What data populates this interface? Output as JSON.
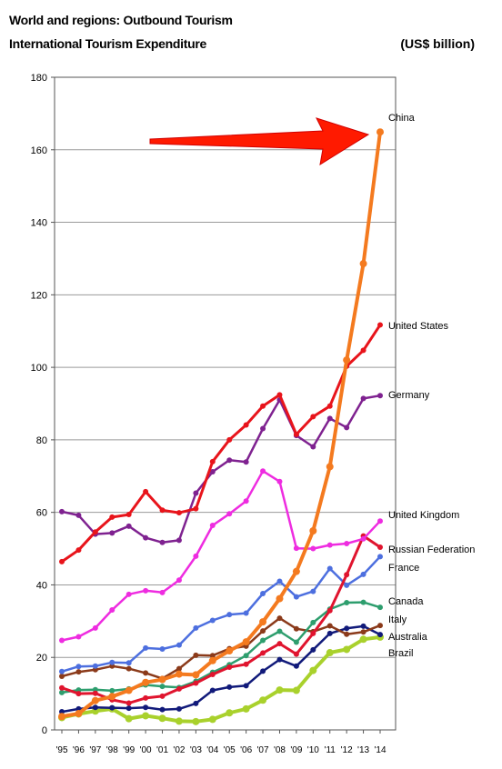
{
  "header": {
    "title": "World and regions: Outbound Tourism",
    "subtitle": "International Tourism Expenditure",
    "unit": "(US$ billion)"
  },
  "chart_data": {
    "type": "line",
    "title": "World and regions: Outbound Tourism",
    "subtitle": "International Tourism Expenditure",
    "ylabel": "(US$ billion)",
    "xlabel": "",
    "x": [
      "'95",
      "'96",
      "'97",
      "'98",
      "'99",
      "'00",
      "'01",
      "'02",
      "'03",
      "'04",
      "'05",
      "'06",
      "'07",
      "'08",
      "'09",
      "'10",
      "'11",
      "'12",
      "'13",
      "'14"
    ],
    "ylim": [
      0,
      180
    ],
    "yticks": [
      0,
      20,
      40,
      60,
      80,
      100,
      120,
      140,
      160,
      180
    ],
    "grid": true,
    "legend": "inline labels at line ends (right)",
    "annotation": "red arrow pointing to China 2014 value",
    "series": [
      {
        "name": "China",
        "color": "#f47a1f",
        "width": 4,
        "values": [
          3.7,
          4.5,
          8.1,
          9.2,
          10.9,
          13.1,
          13.9,
          15.4,
          15.2,
          19.1,
          21.8,
          24.3,
          29.8,
          36.2,
          43.7,
          54.9,
          72.6,
          102.0,
          128.6,
          164.9
        ]
      },
      {
        "name": "United States",
        "color": "#e8141b",
        "width": 3,
        "values": [
          46.4,
          49.6,
          54.6,
          58.7,
          59.4,
          65.7,
          60.6,
          59.9,
          61.0,
          74.0,
          80.0,
          84.1,
          89.3,
          92.4,
          81.5,
          86.4,
          89.3,
          100.3,
          104.7,
          111.7
        ]
      },
      {
        "name": "Germany",
        "color": "#7f2290",
        "width": 2.5,
        "values": [
          60.2,
          59.2,
          54.0,
          54.3,
          56.2,
          53.0,
          51.7,
          52.3,
          65.3,
          71.2,
          74.4,
          73.9,
          83.1,
          91.0,
          81.2,
          78.1,
          85.9,
          83.4,
          91.4,
          92.2
        ]
      },
      {
        "name": "United Kingdom",
        "color": "#ee2ce0",
        "width": 2.5,
        "values": [
          24.7,
          25.7,
          28.1,
          33.1,
          37.4,
          38.4,
          37.9,
          41.3,
          47.9,
          56.4,
          59.6,
          63.1,
          71.4,
          68.5,
          50.1,
          50.0,
          51.0,
          51.4,
          52.7,
          57.6
        ]
      },
      {
        "name": "Russian Federation",
        "color": "#e0142e",
        "width": 3,
        "values": [
          11.6,
          10.0,
          10.1,
          8.3,
          7.4,
          8.8,
          9.3,
          11.3,
          12.9,
          15.3,
          17.3,
          18.1,
          21.2,
          23.8,
          20.9,
          26.6,
          32.9,
          42.8,
          53.5,
          50.4
        ]
      },
      {
        "name": "France",
        "color": "#4d6fdf",
        "width": 2.5,
        "values": [
          16.1,
          17.5,
          17.6,
          18.6,
          18.5,
          22.6,
          22.3,
          23.4,
          28.1,
          30.2,
          31.8,
          32.2,
          37.6,
          41.0,
          36.7,
          38.2,
          44.5,
          39.9,
          42.9,
          47.8
        ]
      },
      {
        "name": "Canada",
        "color": "#2e9e6e",
        "width": 2.5,
        "values": [
          10.3,
          11.0,
          11.1,
          10.8,
          11.3,
          12.4,
          12.0,
          11.7,
          13.4,
          15.9,
          18.0,
          20.5,
          24.7,
          27.2,
          24.2,
          29.6,
          33.3,
          35.1,
          35.2,
          33.8
        ]
      },
      {
        "name": "Italy",
        "color": "#8b3a1a",
        "width": 2.5,
        "values": [
          14.8,
          16.0,
          16.6,
          17.6,
          16.9,
          15.7,
          14.2,
          16.9,
          20.6,
          20.5,
          22.4,
          23.1,
          27.3,
          30.8,
          27.9,
          27.1,
          28.7,
          26.4,
          27.0,
          28.8
        ]
      },
      {
        "name": "Australia",
        "color": "#111a7a",
        "width": 2.5,
        "values": [
          5.0,
          5.8,
          6.2,
          6.1,
          6.0,
          6.2,
          5.6,
          5.8,
          7.3,
          10.9,
          11.8,
          12.2,
          16.2,
          19.4,
          17.6,
          22.1,
          26.6,
          28.0,
          28.6,
          26.3
        ]
      },
      {
        "name": "Brazil",
        "color": "#a9d12c",
        "width": 4,
        "values": [
          3.4,
          4.4,
          5.2,
          5.8,
          3.1,
          3.9,
          3.2,
          2.4,
          2.3,
          2.9,
          4.7,
          5.8,
          8.2,
          11.0,
          10.9,
          16.4,
          21.3,
          22.2,
          25.0,
          25.6
        ]
      }
    ]
  }
}
